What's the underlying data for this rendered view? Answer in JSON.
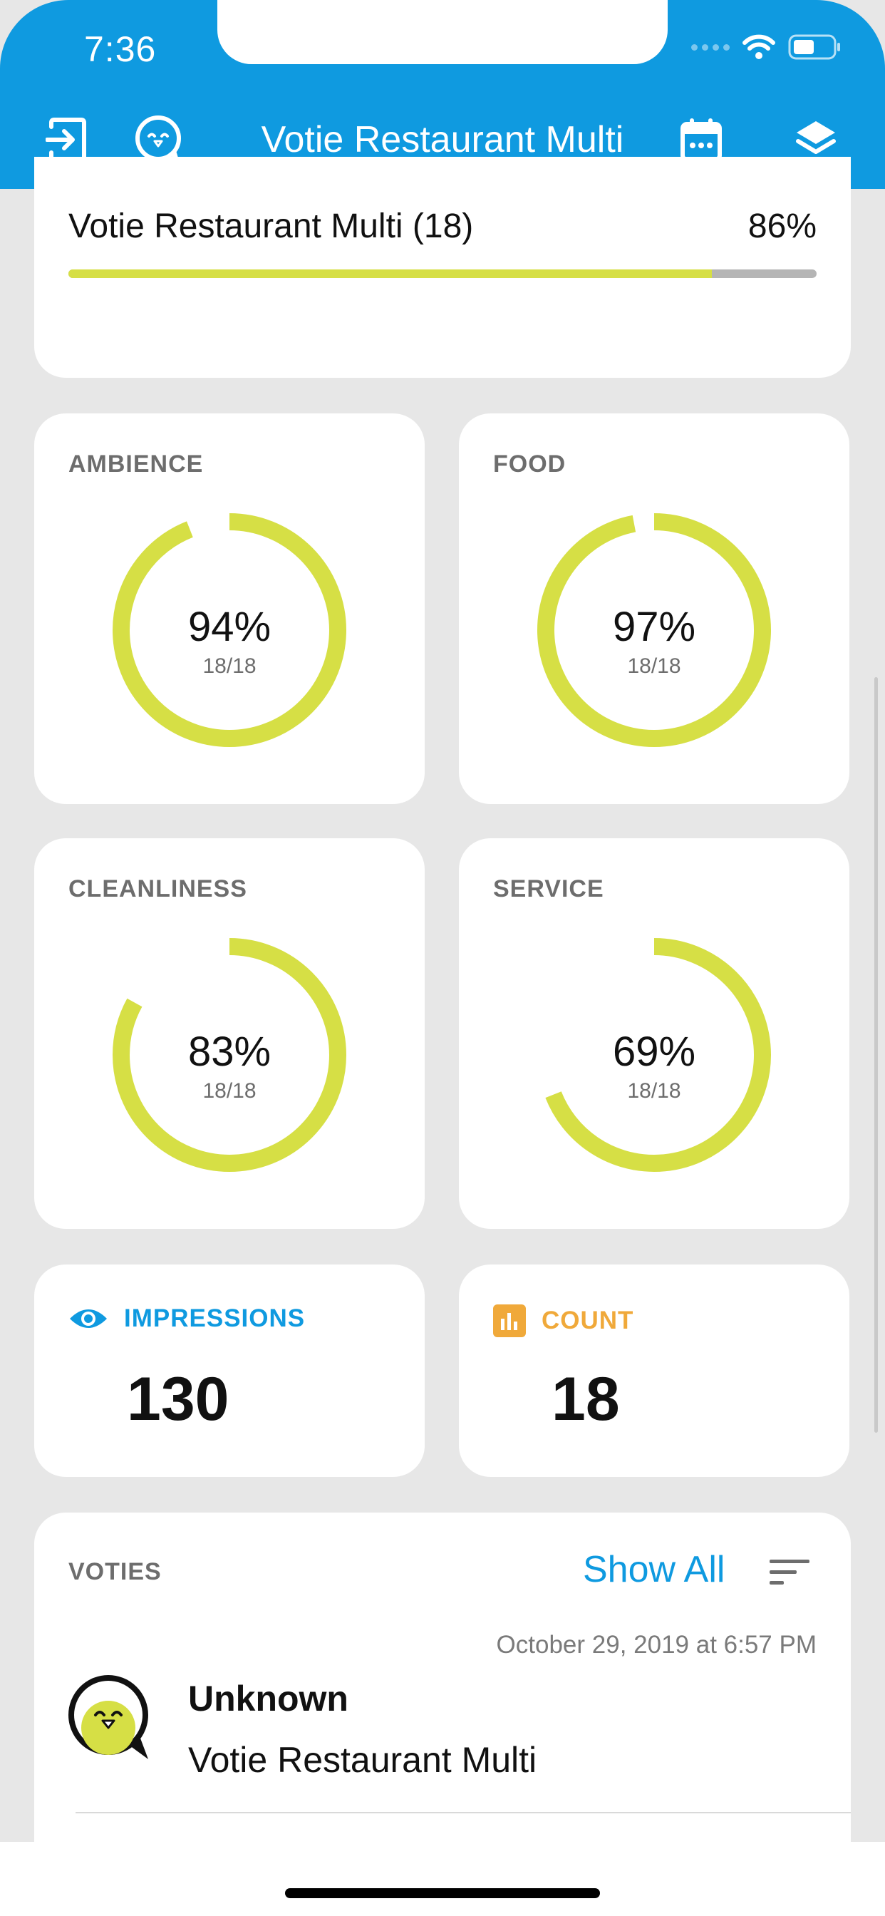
{
  "status_bar": {
    "time": "7:36"
  },
  "nav": {
    "title": "Votie Restaurant Multi",
    "icons": [
      "logout-icon",
      "votie-logo-icon",
      "calendar-icon",
      "layers-icon"
    ]
  },
  "summary": {
    "title": "Votie Restaurant Multi (18)",
    "percent": "86%",
    "progress": 0.86
  },
  "categories": [
    {
      "label": "AMBIENCE",
      "percent": "94%",
      "sub": "18/18",
      "value": 0.94
    },
    {
      "label": "FOOD",
      "percent": "97%",
      "sub": "18/18",
      "value": 0.97
    },
    {
      "label": "CLEANLINESS",
      "percent": "83%",
      "sub": "18/18",
      "value": 0.83
    },
    {
      "label": "SERVICE",
      "percent": "69%",
      "sub": "18/18",
      "value": 0.69
    }
  ],
  "stats": {
    "impressions": {
      "label": "IMPRESSIONS",
      "value": "130",
      "icon": "eye-icon"
    },
    "count": {
      "label": "COUNT",
      "value": "18",
      "icon": "bar-chart-icon"
    }
  },
  "voties": {
    "label": "VOTIES",
    "show_all": "Show All",
    "items": [
      {
        "date": "October 29, 2019 at 6:57 PM",
        "name": "Unknown",
        "place": "Votie Restaurant Multi"
      }
    ]
  },
  "colors": {
    "accent": "#0f9ae0",
    "ring": "#d6df45",
    "count": "#f0a93a",
    "background": "#e7e7e7"
  }
}
